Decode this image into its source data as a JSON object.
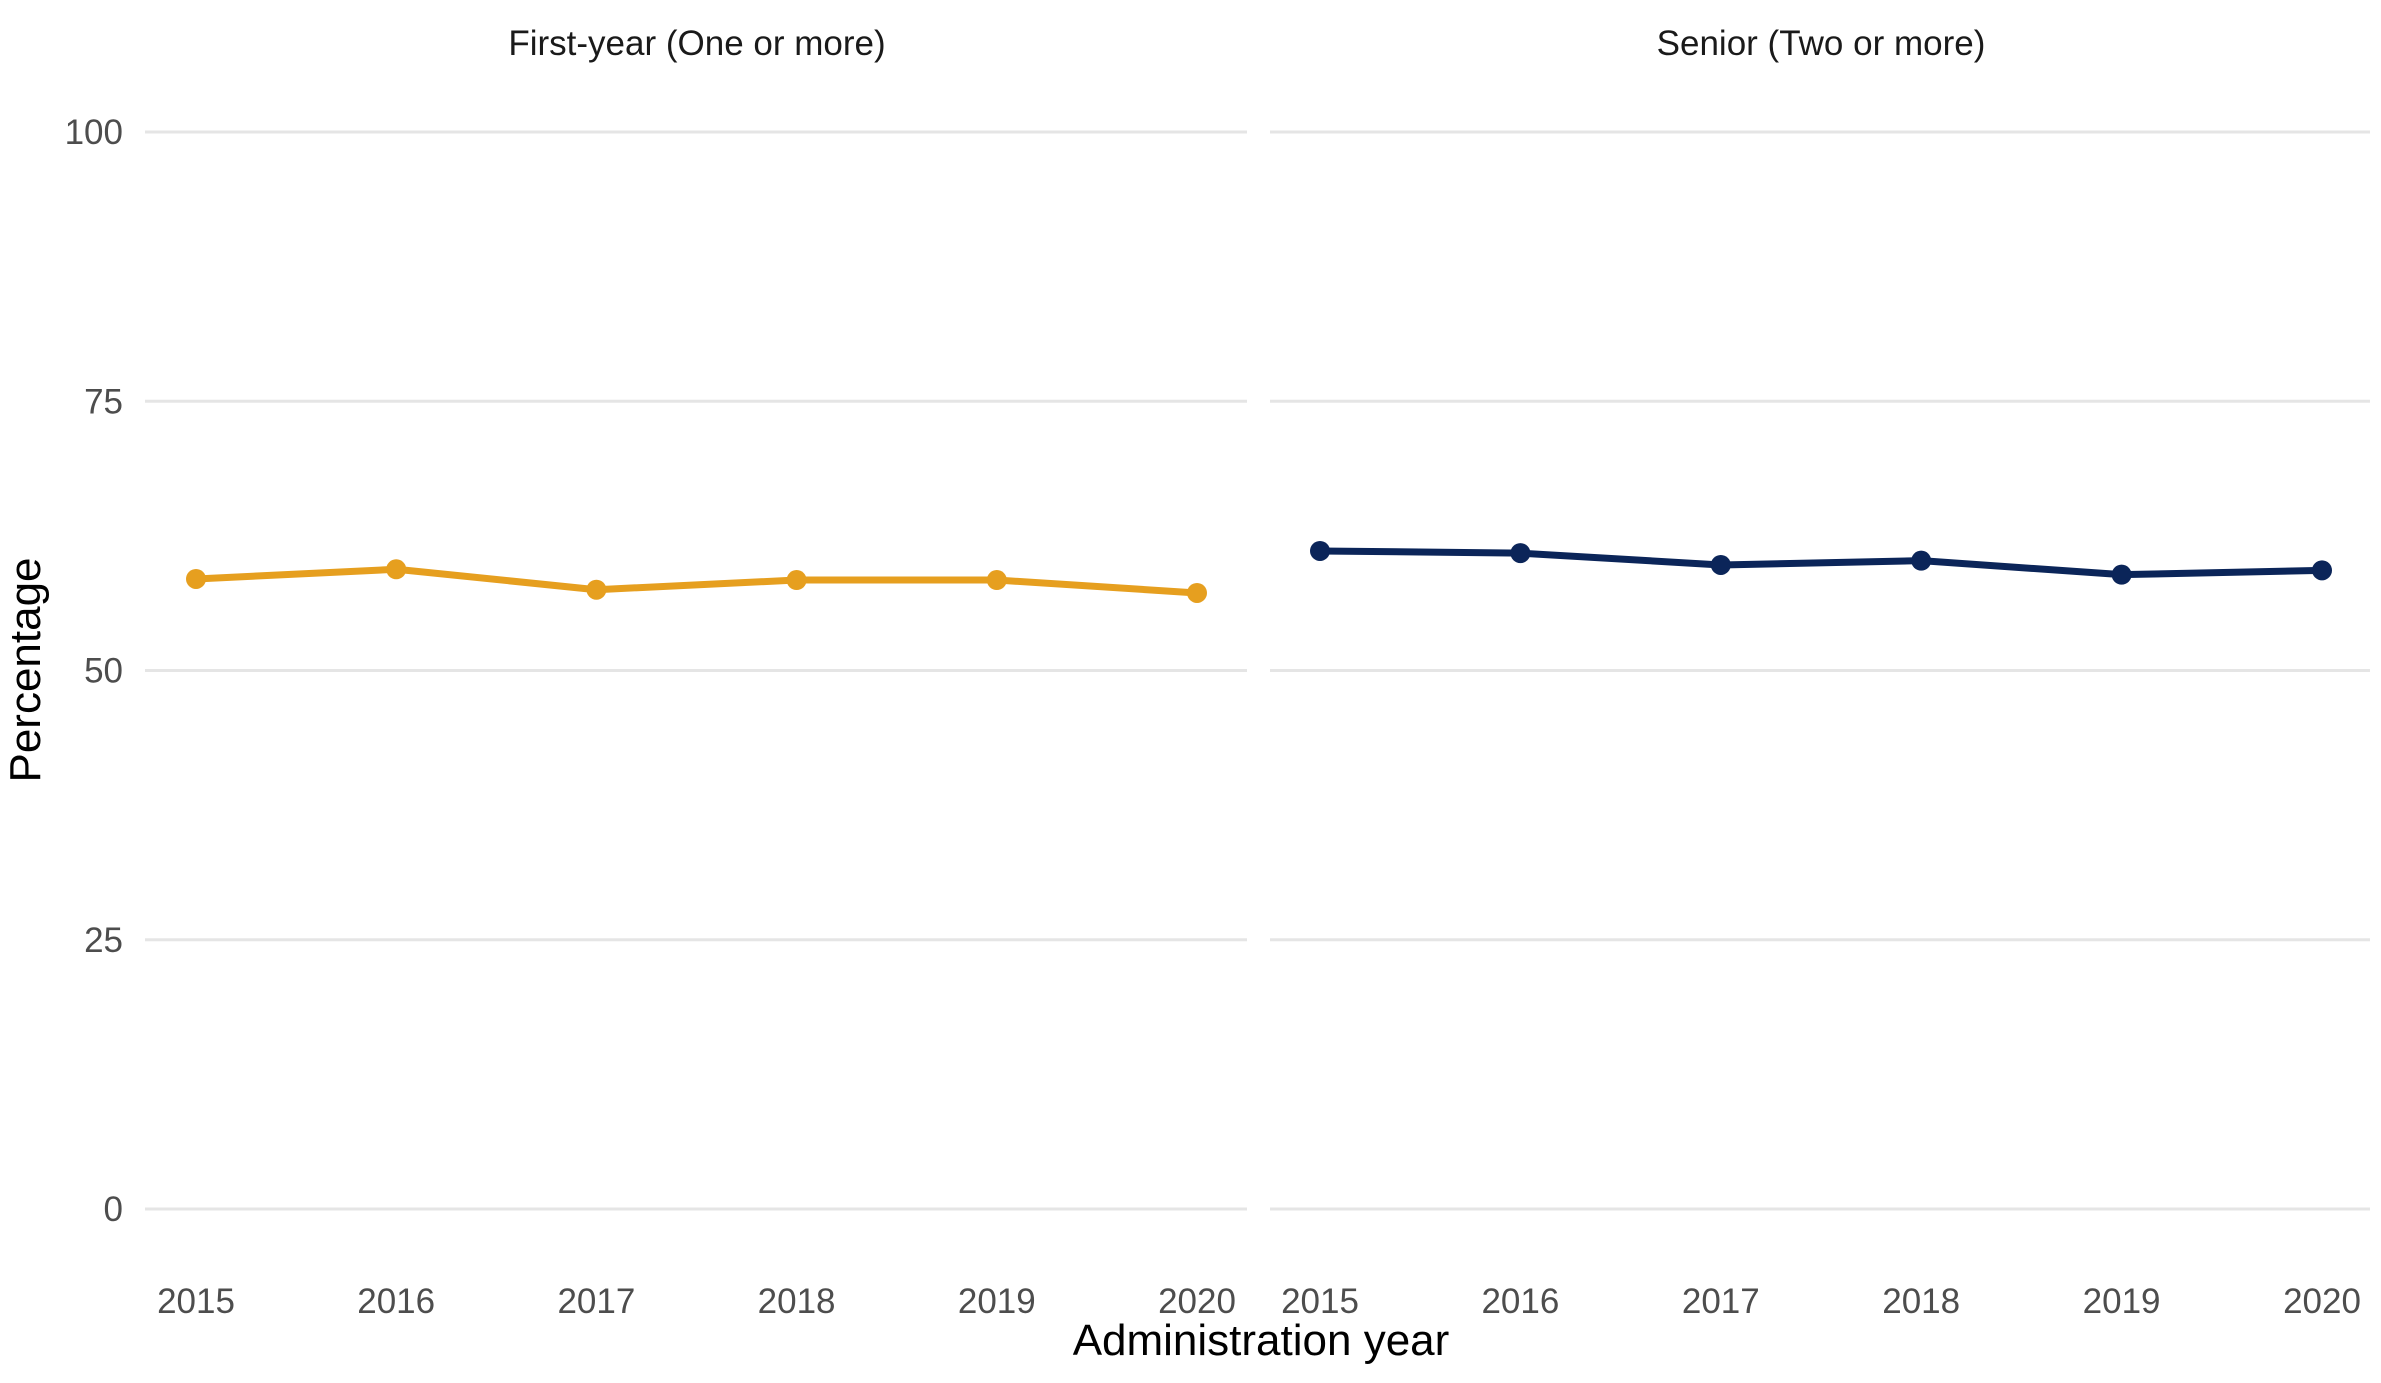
{
  "chart_data": {
    "type": "line",
    "xlabel": "Administration year",
    "ylabel": "Percentage",
    "ylim": [
      0,
      100
    ],
    "y_ticks": [
      "0",
      "25",
      "50",
      "75",
      "100"
    ],
    "x_ticks": [
      "2015",
      "2016",
      "2017",
      "2018",
      "2019",
      "2020"
    ],
    "grid": true,
    "panels": [
      {
        "title": "First-year (One or more)",
        "color": "#E69F1F",
        "x": [
          "2015",
          "2016",
          "2017",
          "2018",
          "2019",
          "2020"
        ],
        "values": [
          58.5,
          59.4,
          57.5,
          58.4,
          58.4,
          57.2
        ]
      },
      {
        "title": "Senior (Two or more)",
        "color": "#0B2559",
        "x": [
          "2015",
          "2016",
          "2017",
          "2018",
          "2019",
          "2020"
        ],
        "values": [
          61.1,
          60.9,
          59.8,
          60.2,
          58.9,
          59.3
        ]
      }
    ]
  }
}
